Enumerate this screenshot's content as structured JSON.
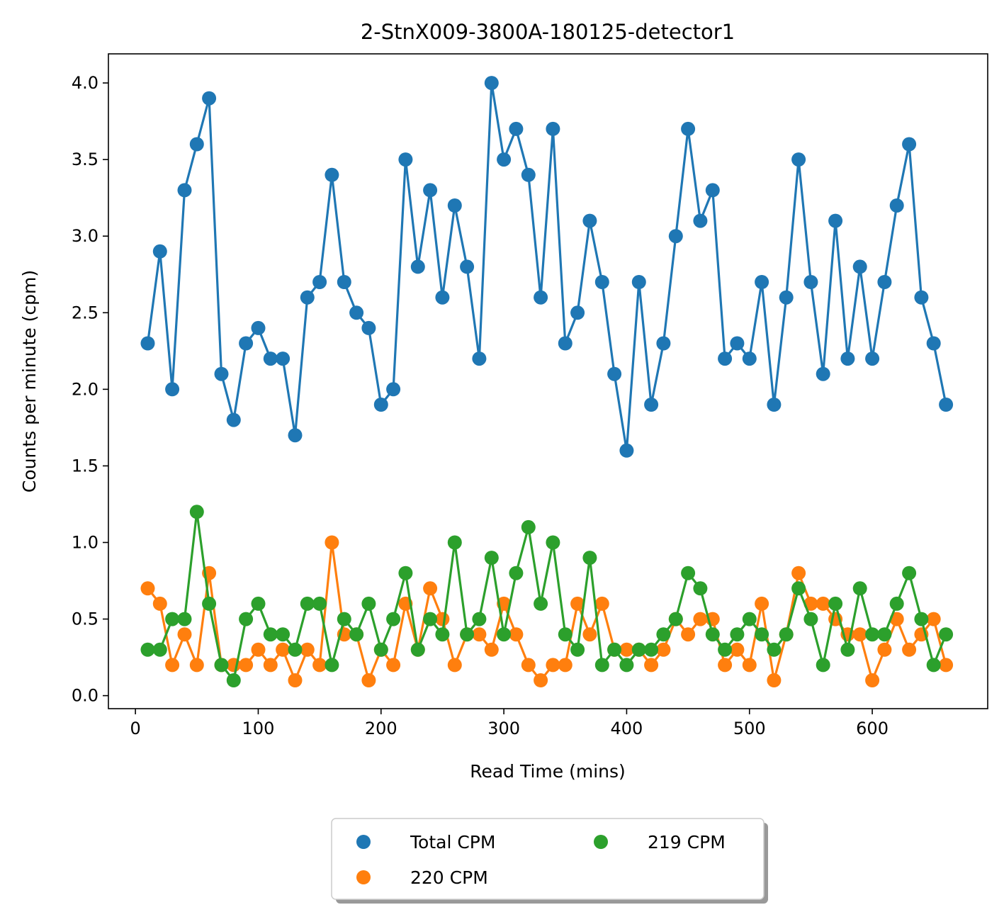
{
  "chart_data": {
    "type": "line",
    "title": "2-StnX009-3800A-180125-detector1",
    "xlabel": "Read Time (mins)",
    "ylabel": "Counts per minute (cpm)",
    "xlim": [
      -22,
      694
    ],
    "ylim": [
      -0.085,
      4.19
    ],
    "xticks": [
      0,
      100,
      200,
      300,
      400,
      500,
      600
    ],
    "yticks": [
      0.0,
      0.5,
      1.0,
      1.5,
      2.0,
      2.5,
      3.0,
      3.5,
      4.0
    ],
    "xtick_labels": [
      "0",
      "100",
      "200",
      "300",
      "400",
      "500",
      "600"
    ],
    "ytick_labels": [
      "0.0",
      "0.5",
      "1.0",
      "1.5",
      "2.0",
      "2.5",
      "3.0",
      "3.5",
      "4.0"
    ],
    "grid": false,
    "legend_placement": "below-center",
    "x": [
      10,
      20,
      30,
      40,
      50,
      60,
      70,
      80,
      90,
      100,
      110,
      120,
      130,
      140,
      150,
      160,
      170,
      180,
      190,
      200,
      210,
      220,
      230,
      240,
      250,
      260,
      270,
      280,
      290,
      300,
      310,
      320,
      330,
      340,
      350,
      360,
      370,
      380,
      390,
      400,
      410,
      420,
      430,
      440,
      450,
      460,
      470,
      480,
      490,
      500,
      510,
      520,
      530,
      540,
      550,
      560,
      570,
      580,
      590,
      600,
      610,
      620,
      630,
      640,
      650,
      660
    ],
    "series": [
      {
        "name": "Total CPM",
        "color": "#1f77b4",
        "values": [
          2.3,
          2.9,
          2.0,
          3.3,
          3.6,
          3.9,
          2.1,
          1.8,
          2.3,
          2.4,
          2.2,
          2.2,
          1.7,
          2.6,
          2.7,
          3.4,
          2.7,
          2.5,
          2.4,
          1.9,
          2.0,
          3.5,
          2.8,
          3.3,
          2.6,
          3.2,
          2.8,
          2.2,
          4.0,
          3.5,
          3.7,
          3.4,
          2.6,
          3.7,
          2.3,
          2.5,
          3.1,
          2.7,
          2.1,
          1.6,
          2.7,
          1.9,
          2.3,
          3.0,
          3.7,
          3.1,
          3.3,
          2.2,
          2.3,
          2.2,
          2.7,
          1.9,
          2.6,
          3.5,
          2.7,
          2.1,
          3.1,
          2.2,
          2.8,
          2.2,
          2.7,
          3.2,
          3.6,
          2.6,
          2.3,
          1.9
        ]
      },
      {
        "name": "220 CPM",
        "color": "#ff7f0e",
        "values": [
          0.7,
          0.6,
          0.2,
          0.4,
          0.2,
          0.8,
          0.2,
          0.2,
          0.2,
          0.3,
          0.2,
          0.3,
          0.1,
          0.3,
          0.2,
          1.0,
          0.4,
          0.4,
          0.1,
          0.3,
          0.2,
          0.6,
          0.3,
          0.7,
          0.5,
          0.2,
          0.4,
          0.4,
          0.3,
          0.6,
          0.4,
          0.2,
          0.1,
          0.2,
          0.2,
          0.6,
          0.4,
          0.6,
          0.3,
          0.3,
          0.3,
          0.2,
          0.3,
          0.5,
          0.4,
          0.5,
          0.5,
          0.2,
          0.3,
          0.2,
          0.6,
          0.1,
          0.4,
          0.8,
          0.6,
          0.6,
          0.5,
          0.4,
          0.4,
          0.1,
          0.3,
          0.5,
          0.3,
          0.4,
          0.5,
          0.2
        ]
      },
      {
        "name": "219 CPM",
        "color": "#2ca02c",
        "values": [
          0.3,
          0.3,
          0.5,
          0.5,
          1.2,
          0.6,
          0.2,
          0.1,
          0.5,
          0.6,
          0.4,
          0.4,
          0.3,
          0.6,
          0.6,
          0.2,
          0.5,
          0.4,
          0.6,
          0.3,
          0.5,
          0.8,
          0.3,
          0.5,
          0.4,
          1.0,
          0.4,
          0.5,
          0.9,
          0.4,
          0.8,
          1.1,
          0.6,
          1.0,
          0.4,
          0.3,
          0.9,
          0.2,
          0.3,
          0.2,
          0.3,
          0.3,
          0.4,
          0.5,
          0.8,
          0.7,
          0.4,
          0.3,
          0.4,
          0.5,
          0.4,
          0.3,
          0.4,
          0.7,
          0.5,
          0.2,
          0.6,
          0.3,
          0.7,
          0.4,
          0.4,
          0.6,
          0.8,
          0.5,
          0.2,
          0.4
        ]
      }
    ]
  }
}
